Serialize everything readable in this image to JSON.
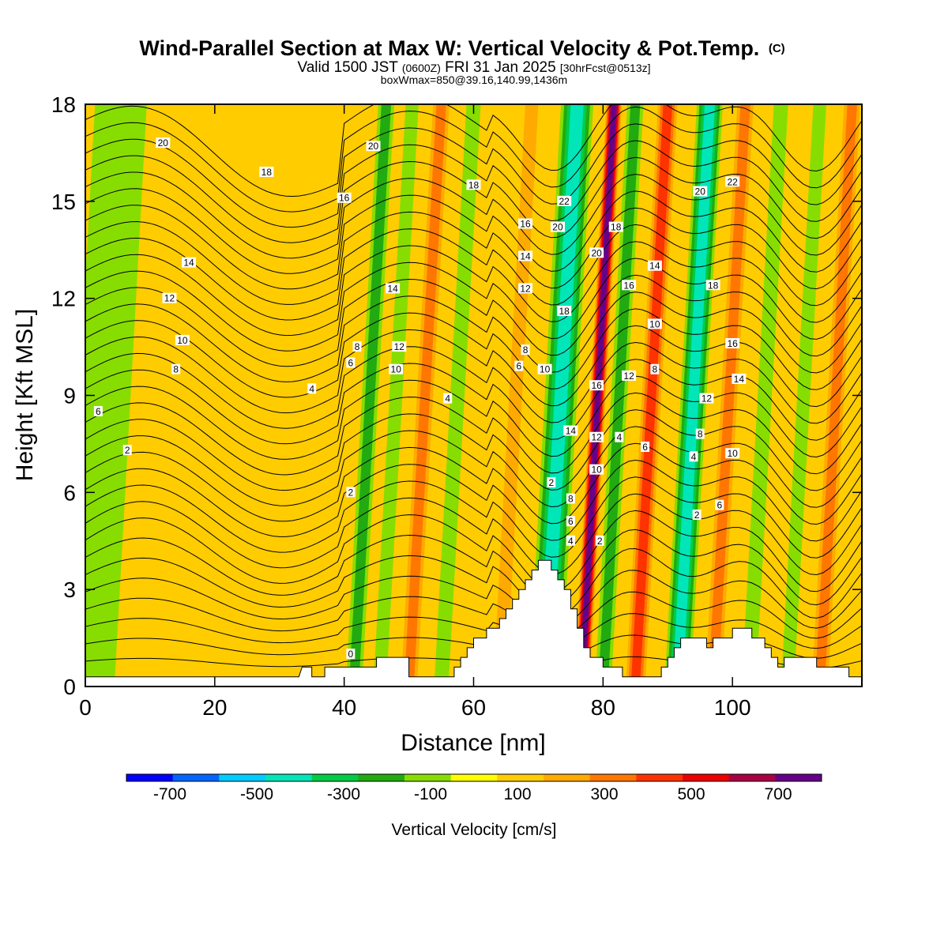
{
  "title": {
    "main": "Wind-Parallel Section at Max W: Vertical Velocity & Pot.Temp.",
    "copyright": "(C)",
    "valid_a": "Valid 1500 JST",
    "valid_zulu": "(0600Z)",
    "valid_b": "FRI 31 Jan 2025",
    "forecast": "[30hrFcst@0513z]",
    "boxinfo": "boxWmax=850@39.16,140.99,1436m"
  },
  "chart_data": {
    "type": "heatmap",
    "xlabel": "Distance [nm]",
    "ylabel": "Height [Kft MSL]",
    "xlim": [
      0,
      120
    ],
    "ylim": [
      0,
      18
    ],
    "x_ticks": [
      0,
      20,
      40,
      60,
      80,
      100
    ],
    "y_ticks": [
      0,
      3,
      6,
      9,
      12,
      15,
      18
    ],
    "colorbar": {
      "label": "Vertical Velocity [cm/s]",
      "tick_labels": [
        "-700",
        "-500",
        "-300",
        "-100",
        "100",
        "300",
        "500",
        "700"
      ],
      "tick_values": [
        -700,
        -500,
        -300,
        -100,
        100,
        300,
        500,
        700
      ],
      "range": [
        -800,
        800
      ],
      "step": 100,
      "colors": [
        "#0000ff",
        "#0066ff",
        "#00ccff",
        "#00e6b8",
        "#00cc44",
        "#22aa11",
        "#88dd00",
        "#ffff00",
        "#ffcc00",
        "#ffaa00",
        "#ff7700",
        "#ff3300",
        "#ee0000",
        "#aa0044",
        "#660088"
      ]
    },
    "vertical_velocity_bands": [
      {
        "x": 3,
        "w": 8,
        "value": -150
      },
      {
        "x": 44,
        "w": 2.5,
        "value": -220
      },
      {
        "x": 48,
        "w": 2,
        "value": -130
      },
      {
        "x": 52.5,
        "w": 2.5,
        "value": 260
      },
      {
        "x": 57.5,
        "w": 2.2,
        "value": -150
      },
      {
        "x": 66.5,
        "w": 2,
        "value": 180
      },
      {
        "x": 73.5,
        "w": 5,
        "value": -420
      },
      {
        "x": 79.2,
        "w": 2.4,
        "value": 620
      },
      {
        "x": 82.5,
        "w": 2.5,
        "value": -280
      },
      {
        "x": 87.5,
        "w": 3,
        "value": 360
      },
      {
        "x": 94,
        "w": 4,
        "value": -480
      },
      {
        "x": 99.5,
        "w": 2.5,
        "value": 200
      },
      {
        "x": 105,
        "w": 2.2,
        "value": -170
      },
      {
        "x": 111,
        "w": 2,
        "value": -190
      },
      {
        "x": 116,
        "w": 2.5,
        "value": 220
      }
    ],
    "theta_contour_levels": [
      0,
      2,
      4,
      6,
      8,
      10,
      12,
      14,
      16,
      18,
      20,
      22
    ],
    "contour_labels": [
      {
        "x": 12,
        "y": 16.8,
        "text": "20"
      },
      {
        "x": 28,
        "y": 15.9,
        "text": "18"
      },
      {
        "x": 40,
        "y": 15.1,
        "text": "16"
      },
      {
        "x": 16,
        "y": 13.1,
        "text": "14"
      },
      {
        "x": 13,
        "y": 12.0,
        "text": "12"
      },
      {
        "x": 15,
        "y": 10.7,
        "text": "10"
      },
      {
        "x": 14,
        "y": 9.8,
        "text": "8"
      },
      {
        "x": 2,
        "y": 8.5,
        "text": "6"
      },
      {
        "x": 6.5,
        "y": 7.3,
        "text": "2"
      },
      {
        "x": 35,
        "y": 9.2,
        "text": "4"
      },
      {
        "x": 41,
        "y": 6.0,
        "text": "2"
      },
      {
        "x": 41,
        "y": 1.0,
        "text": "0"
      },
      {
        "x": 44.5,
        "y": 16.7,
        "text": "20"
      },
      {
        "x": 47.5,
        "y": 12.3,
        "text": "14"
      },
      {
        "x": 48.5,
        "y": 10.5,
        "text": "12"
      },
      {
        "x": 42,
        "y": 10.5,
        "text": "8"
      },
      {
        "x": 41,
        "y": 10.0,
        "text": "6"
      },
      {
        "x": 48,
        "y": 9.8,
        "text": "10"
      },
      {
        "x": 56,
        "y": 8.9,
        "text": "4"
      },
      {
        "x": 60,
        "y": 15.5,
        "text": "18"
      },
      {
        "x": 68,
        "y": 14.3,
        "text": "16"
      },
      {
        "x": 68,
        "y": 13.3,
        "text": "14"
      },
      {
        "x": 68,
        "y": 12.3,
        "text": "12"
      },
      {
        "x": 68,
        "y": 10.4,
        "text": "8"
      },
      {
        "x": 67,
        "y": 9.9,
        "text": "6"
      },
      {
        "x": 71,
        "y": 9.8,
        "text": "10"
      },
      {
        "x": 72,
        "y": 6.3,
        "text": "2"
      },
      {
        "x": 74,
        "y": 15.0,
        "text": "22"
      },
      {
        "x": 73,
        "y": 14.2,
        "text": "20"
      },
      {
        "x": 74,
        "y": 11.6,
        "text": "18"
      },
      {
        "x": 75,
        "y": 7.9,
        "text": "14"
      },
      {
        "x": 75,
        "y": 5.8,
        "text": "8"
      },
      {
        "x": 75,
        "y": 5.1,
        "text": "6"
      },
      {
        "x": 75,
        "y": 4.5,
        "text": "4"
      },
      {
        "x": 79,
        "y": 13.4,
        "text": "20"
      },
      {
        "x": 79,
        "y": 9.3,
        "text": "16"
      },
      {
        "x": 79,
        "y": 7.7,
        "text": "12"
      },
      {
        "x": 79,
        "y": 6.7,
        "text": "10"
      },
      {
        "x": 79.5,
        "y": 4.5,
        "text": "2"
      },
      {
        "x": 82,
        "y": 14.2,
        "text": "18"
      },
      {
        "x": 84,
        "y": 12.4,
        "text": "16"
      },
      {
        "x": 84,
        "y": 9.6,
        "text": "12"
      },
      {
        "x": 82.5,
        "y": 7.7,
        "text": "4"
      },
      {
        "x": 88,
        "y": 13.0,
        "text": "14"
      },
      {
        "x": 88,
        "y": 11.2,
        "text": "10"
      },
      {
        "x": 88,
        "y": 9.8,
        "text": "8"
      },
      {
        "x": 86.5,
        "y": 7.4,
        "text": "6"
      },
      {
        "x": 95,
        "y": 15.3,
        "text": "20"
      },
      {
        "x": 100,
        "y": 15.6,
        "text": "22"
      },
      {
        "x": 97,
        "y": 12.4,
        "text": "18"
      },
      {
        "x": 100,
        "y": 10.6,
        "text": "16"
      },
      {
        "x": 101,
        "y": 9.5,
        "text": "14"
      },
      {
        "x": 96,
        "y": 8.9,
        "text": "12"
      },
      {
        "x": 95,
        "y": 7.8,
        "text": "8"
      },
      {
        "x": 94,
        "y": 7.1,
        "text": "4"
      },
      {
        "x": 100,
        "y": 7.2,
        "text": "10"
      },
      {
        "x": 94.5,
        "y": 5.3,
        "text": "2"
      },
      {
        "x": 98,
        "y": 5.6,
        "text": "6"
      }
    ],
    "terrain_kft": [
      [
        0,
        0.3
      ],
      [
        33,
        0.3
      ],
      [
        33.5,
        0.6
      ],
      [
        35,
        0.6
      ],
      [
        35,
        0.3
      ],
      [
        37,
        0.3
      ],
      [
        37,
        0.6
      ],
      [
        45,
        0.6
      ],
      [
        45,
        0.9
      ],
      [
        50,
        0.9
      ],
      [
        50,
        0.3
      ],
      [
        57,
        0.3
      ],
      [
        57,
        0.6
      ],
      [
        58,
        0.6
      ],
      [
        58,
        0.9
      ],
      [
        59,
        0.9
      ],
      [
        59,
        1.2
      ],
      [
        60,
        1.2
      ],
      [
        60,
        1.5
      ],
      [
        62,
        1.5
      ],
      [
        62,
        1.8
      ],
      [
        64,
        1.8
      ],
      [
        64,
        2.1
      ],
      [
        65,
        2.1
      ],
      [
        65,
        2.4
      ],
      [
        66,
        2.4
      ],
      [
        66,
        2.7
      ],
      [
        67,
        2.7
      ],
      [
        67,
        3.0
      ],
      [
        68,
        3.0
      ],
      [
        68,
        3.3
      ],
      [
        69,
        3.3
      ],
      [
        69,
        3.6
      ],
      [
        70,
        3.6
      ],
      [
        70,
        3.9
      ],
      [
        72,
        3.9
      ],
      [
        72,
        3.6
      ],
      [
        73,
        3.6
      ],
      [
        73,
        3.3
      ],
      [
        74,
        3.3
      ],
      [
        74,
        3.0
      ],
      [
        75,
        3.0
      ],
      [
        75,
        2.4
      ],
      [
        76,
        2.4
      ],
      [
        76,
        1.8
      ],
      [
        77,
        1.8
      ],
      [
        77,
        1.2
      ],
      [
        78,
        1.2
      ],
      [
        78,
        0.9
      ],
      [
        80,
        0.9
      ],
      [
        80,
        0.6
      ],
      [
        83,
        0.6
      ],
      [
        83,
        0.3
      ],
      [
        89,
        0.3
      ],
      [
        89,
        0.6
      ],
      [
        90,
        0.6
      ],
      [
        90,
        0.9
      ],
      [
        91,
        0.9
      ],
      [
        91,
        1.2
      ],
      [
        92,
        1.2
      ],
      [
        92,
        1.5
      ],
      [
        96,
        1.5
      ],
      [
        96,
        1.2
      ],
      [
        97,
        1.2
      ],
      [
        97,
        1.5
      ],
      [
        100,
        1.5
      ],
      [
        100,
        1.8
      ],
      [
        103,
        1.8
      ],
      [
        103,
        1.5
      ],
      [
        105,
        1.5
      ],
      [
        105,
        1.2
      ],
      [
        106,
        1.2
      ],
      [
        106,
        0.9
      ],
      [
        107,
        0.9
      ],
      [
        107,
        0.6
      ],
      [
        108,
        0.6
      ],
      [
        108,
        0.9
      ],
      [
        113,
        0.9
      ],
      [
        113,
        0.6
      ],
      [
        118,
        0.6
      ],
      [
        118,
        0.3
      ],
      [
        120,
        0.3
      ]
    ]
  }
}
